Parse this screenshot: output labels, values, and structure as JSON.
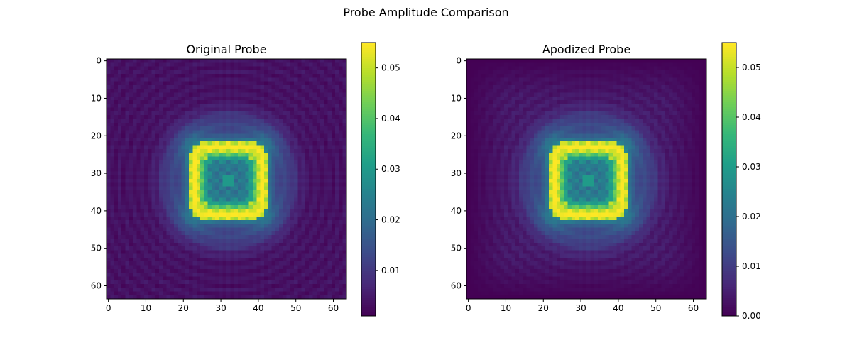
{
  "figure": {
    "title": "Probe Amplitude Comparison"
  },
  "colors": {
    "viridis": [
      "#440154",
      "#482878",
      "#3e4989",
      "#31688e",
      "#26828e",
      "#1f9e89",
      "#35b779",
      "#6ece58",
      "#b5de2b",
      "#fde725"
    ],
    "axis": "#000000",
    "background": "#ffffff"
  },
  "chart_data": [
    {
      "type": "heatmap",
      "title": "Original Probe",
      "grid_size": [
        64,
        64
      ],
      "x_ticks": [
        "0",
        "10",
        "20",
        "30",
        "40",
        "50",
        "60"
      ],
      "y_ticks": [
        "0",
        "10",
        "20",
        "30",
        "40",
        "50",
        "60"
      ],
      "colorbar": {
        "min": 0.001,
        "max": 0.055,
        "ticks": [
          "0.01",
          "0.02",
          "0.03",
          "0.04",
          "0.05"
        ]
      },
      "field": {
        "center": [
          32,
          32
        ],
        "ring_half_width": 9,
        "ring_thickness": 2.6,
        "ring_peak": 0.055,
        "inner_level": 0.022,
        "center_level": 0.03,
        "halo_level": 0.006,
        "edge_level": 0.0035,
        "apodized": false
      }
    },
    {
      "type": "heatmap",
      "title": "Apodized Probe",
      "grid_size": [
        64,
        64
      ],
      "x_ticks": [
        "0",
        "10",
        "20",
        "30",
        "40",
        "50",
        "60"
      ],
      "y_ticks": [
        "0",
        "10",
        "20",
        "30",
        "40",
        "50",
        "60"
      ],
      "colorbar": {
        "min": 0.0,
        "max": 0.055,
        "ticks": [
          "0.00",
          "0.01",
          "0.02",
          "0.03",
          "0.04",
          "0.05"
        ]
      },
      "field": {
        "center": [
          32,
          32
        ],
        "ring_half_width": 9,
        "ring_thickness": 2.6,
        "ring_peak": 0.055,
        "inner_level": 0.022,
        "center_level": 0.03,
        "halo_level": 0.006,
        "edge_level": 0.0035,
        "apodized": true
      }
    }
  ]
}
